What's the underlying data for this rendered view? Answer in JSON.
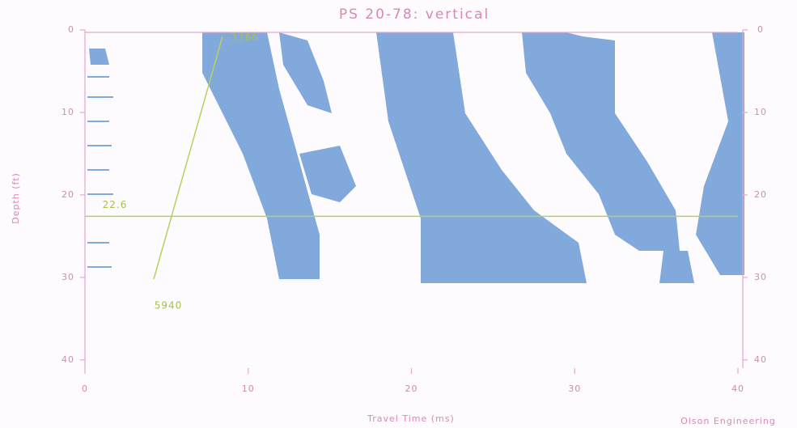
{
  "chart_data": {
    "type": "wiggle",
    "title": "PS 20-78: vertical",
    "x_label": "Travel Time (ms)",
    "y_label": "Depth (ft)",
    "credit": "Olson Engineering",
    "xlim": [
      0,
      40
    ],
    "xticks": [
      0,
      10,
      20,
      30,
      40
    ],
    "ylim": [
      0,
      41
    ],
    "yticks": [
      0,
      10,
      20,
      30,
      40
    ],
    "marker_depth": 22.6,
    "velocity_labels": [
      "-3366",
      "5940"
    ]
  }
}
